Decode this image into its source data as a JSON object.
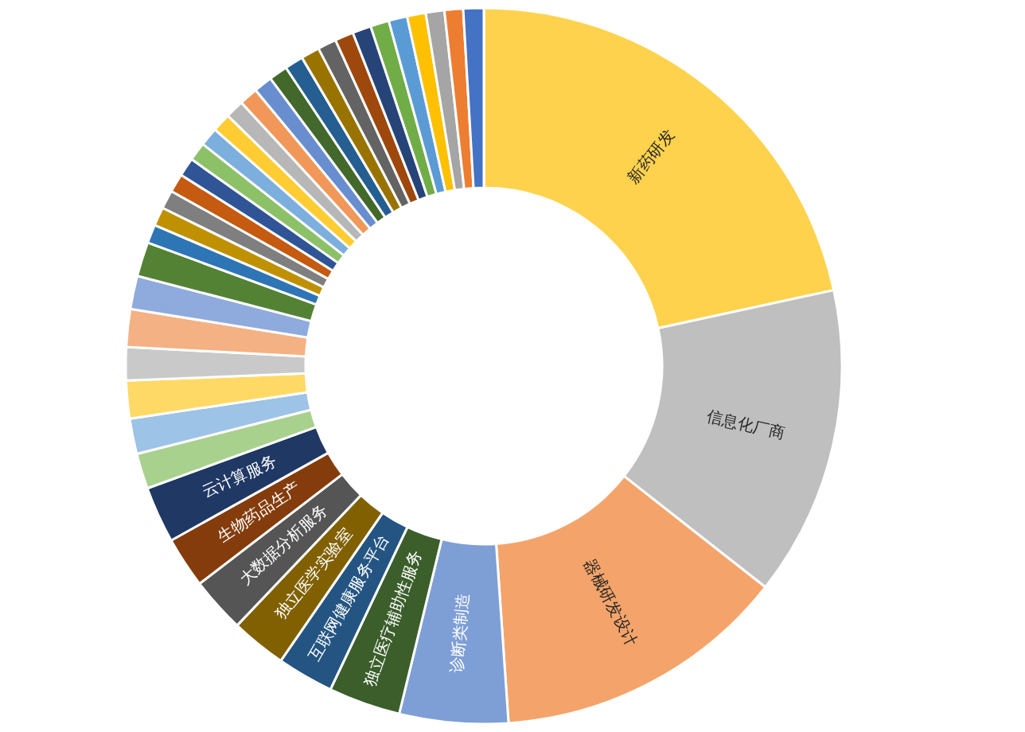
{
  "chart_data": {
    "type": "donut",
    "categories": [
      "新药研发",
      "信息化厂商",
      "器械研发设计",
      "诊断类制造",
      "独立医疗辅助性服务",
      "互联网健康服务平台",
      "独立医学实验室",
      "大数据分析服务",
      "生物药品生产",
      "云计算服务",
      null,
      null,
      null,
      null,
      null,
      null,
      null,
      null,
      null,
      null,
      null,
      null,
      null,
      null,
      null,
      null,
      null,
      null,
      null,
      null,
      null,
      null,
      null,
      null,
      null,
      null,
      null,
      null,
      null,
      null
    ],
    "values": [
      21.6,
      14.0,
      13.3,
      4.9,
      3.25,
      2.55,
      2.5,
      2.5,
      2.3,
      2.55,
      1.6,
      1.6,
      1.7,
      1.5,
      1.7,
      1.5,
      1.55,
      0.84,
      0.84,
      0.84,
      0.84,
      0.84,
      0.84,
      0.84,
      0.84,
      0.84,
      0.84,
      0.84,
      0.84,
      0.84,
      0.84,
      0.84,
      0.84,
      0.84,
      0.84,
      0.84,
      0.84,
      0.84,
      0.84,
      0.92
    ],
    "colors": [
      "#ffd24d",
      "#bfbfbf",
      "#f4a46a",
      "#7e9ed6",
      "#3b5e2b",
      "#245582",
      "#806000",
      "#555555",
      "#843c0c",
      "#1f3864",
      "#a9d18e",
      "#9dc3e6",
      "#ffd966",
      "#c9c9c9",
      "#f4b183",
      "#8faadc",
      "#548235",
      "#2e75b6",
      "#bf9000",
      "#7f7f7f",
      "#c55a11",
      "#2f5597",
      "#8cc168",
      "#7cafdd",
      "#ffcd33",
      "#b7b7b7",
      "#f1975a",
      "#698ed0",
      "#43682b",
      "#255e91",
      "#997300",
      "#636363",
      "#9e480e",
      "#264478",
      "#70ad47",
      "#5b9bd5",
      "#ffc000",
      "#a5a5a5",
      "#ed7d31",
      "#4472c4"
    ]
  }
}
